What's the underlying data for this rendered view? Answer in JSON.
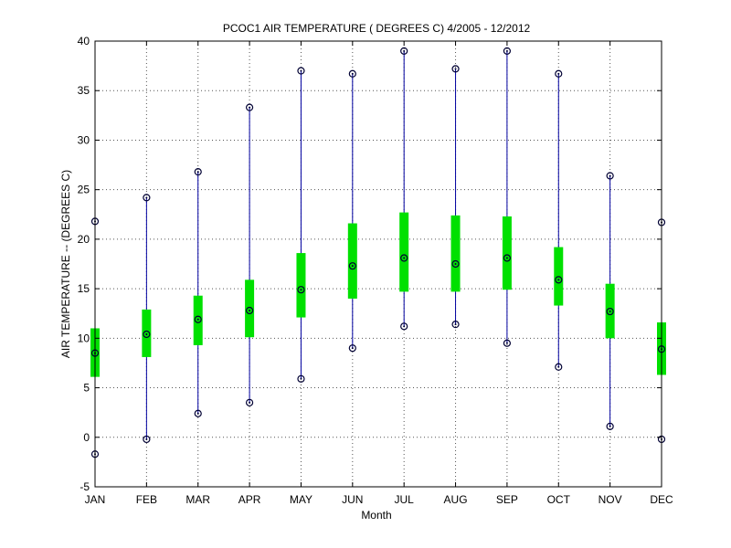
{
  "chart_data": {
    "type": "boxplot",
    "title": "PCOC1  AIR TEMPERATURE ( DEGREES C) 4/2005 - 12/2012",
    "xlabel": "Month",
    "ylabel": "AIR TEMPERATURE -- (DEGREES C)",
    "ylim": [
      -5,
      40
    ],
    "yticks": [
      -5,
      0,
      5,
      10,
      15,
      20,
      25,
      30,
      35,
      40
    ],
    "grid": true,
    "categories": [
      "JAN",
      "FEB",
      "MAR",
      "APR",
      "MAY",
      "JUN",
      "JUL",
      "AUG",
      "SEP",
      "OCT",
      "NOV",
      "DEC"
    ],
    "series": [
      {
        "min": [
          -1.7,
          -0.2,
          2.4,
          3.5,
          5.9,
          9.0,
          11.2,
          11.4,
          9.5,
          7.1,
          1.1,
          -0.2
        ],
        "q1": [
          6.1,
          8.1,
          9.3,
          10.1,
          12.1,
          14.0,
          14.7,
          14.7,
          14.9,
          13.3,
          10.0,
          6.3
        ],
        "median": [
          8.5,
          10.4,
          11.9,
          12.8,
          14.9,
          17.3,
          18.1,
          17.5,
          18.1,
          15.9,
          12.7,
          8.9
        ],
        "q3": [
          11.0,
          12.9,
          14.3,
          15.9,
          18.6,
          21.6,
          22.7,
          22.4,
          22.3,
          19.2,
          15.5,
          11.6
        ],
        "max": [
          21.8,
          24.2,
          26.8,
          33.3,
          37.0,
          36.7,
          39.0,
          37.2,
          39.0,
          36.7,
          26.4,
          21.7
        ]
      }
    ],
    "colors": {
      "whisker": "#0000a0",
      "box": "#00e000",
      "marker": "#000033",
      "grid": "#555555",
      "axis": "#000000"
    }
  }
}
